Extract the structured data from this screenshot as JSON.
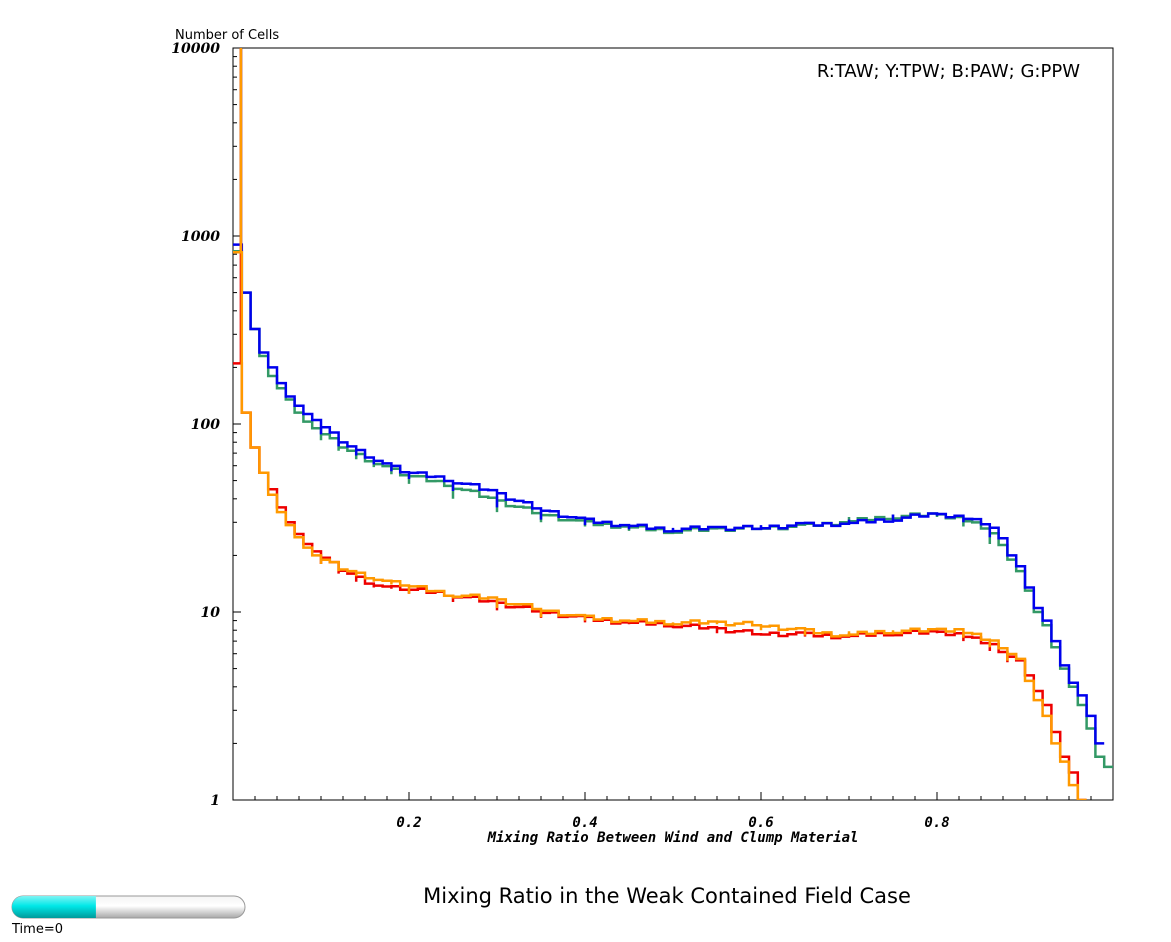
{
  "chart_data": {
    "type": "line",
    "title": "Mixing Ratio in the Weak Contained Field Case",
    "ylabel": "Number of Cells",
    "xlabel": "Mixing Ratio Between Wind and Clump Material",
    "legend_text": "R:TAW; Y:TPW; B:PAW; G:PPW",
    "legend_position": "top-right",
    "y_scale": "log",
    "ylim": [
      1,
      10000
    ],
    "xlim": [
      0,
      1
    ],
    "y_ticks": [
      "10000",
      "1000",
      "100",
      "10",
      "1"
    ],
    "y_tick_values": [
      10000,
      1000,
      100,
      10,
      1
    ],
    "x_ticks": [
      "0.2",
      "0.4",
      "0.6",
      "0.8"
    ],
    "x_tick_values": [
      0.2,
      0.4,
      0.6,
      0.8
    ],
    "grid": false,
    "bin_width": 0.01,
    "series": [
      {
        "name": "TAW",
        "color": "#ee0000",
        "bins": [
          [
            0.01,
            210
          ],
          [
            0.02,
            115
          ],
          [
            0.03,
            75
          ],
          [
            0.04,
            55
          ],
          [
            0.05,
            45
          ],
          [
            0.06,
            36
          ],
          [
            0.07,
            30
          ],
          [
            0.08,
            26
          ],
          [
            0.09,
            23
          ],
          [
            0.1,
            21
          ],
          [
            0.12,
            18
          ],
          [
            0.14,
            16
          ],
          [
            0.16,
            14.5
          ],
          [
            0.18,
            13.5
          ],
          [
            0.2,
            13.3
          ],
          [
            0.25,
            12.5
          ],
          [
            0.3,
            11.3
          ],
          [
            0.35,
            10.2
          ],
          [
            0.4,
            9.3
          ],
          [
            0.45,
            8.8
          ],
          [
            0.5,
            8.6
          ],
          [
            0.55,
            8.2
          ],
          [
            0.6,
            7.7
          ],
          [
            0.65,
            7.6
          ],
          [
            0.7,
            7.4
          ],
          [
            0.75,
            7.7
          ],
          [
            0.8,
            7.8
          ],
          [
            0.83,
            7.7
          ],
          [
            0.86,
            7.0
          ],
          [
            0.88,
            6.2
          ],
          [
            0.9,
            5.4
          ],
          [
            0.91,
            4.6
          ],
          [
            0.92,
            3.8
          ],
          [
            0.93,
            3.2
          ],
          [
            0.94,
            2.3
          ],
          [
            0.95,
            1.7
          ],
          [
            0.96,
            1.4
          ],
          [
            0.97,
            1.0
          ]
        ]
      },
      {
        "name": "TPW",
        "color": "#ff9900",
        "bins": [
          [
            0.01,
            820
          ],
          [
            0.02,
            115
          ],
          [
            0.03,
            75
          ],
          [
            0.04,
            55
          ],
          [
            0.05,
            42
          ],
          [
            0.06,
            34
          ],
          [
            0.07,
            29
          ],
          [
            0.08,
            25
          ],
          [
            0.09,
            22
          ],
          [
            0.1,
            20
          ],
          [
            0.12,
            18
          ],
          [
            0.14,
            16.5
          ],
          [
            0.16,
            15.5
          ],
          [
            0.18,
            14.5
          ],
          [
            0.2,
            14.0
          ],
          [
            0.25,
            12.5
          ],
          [
            0.3,
            11.8
          ],
          [
            0.35,
            10.5
          ],
          [
            0.4,
            9.4
          ],
          [
            0.45,
            9.0
          ],
          [
            0.5,
            8.8
          ],
          [
            0.55,
            8.8
          ],
          [
            0.6,
            8.6
          ],
          [
            0.65,
            8.0
          ],
          [
            0.7,
            7.5
          ],
          [
            0.75,
            7.9
          ],
          [
            0.8,
            8.0
          ],
          [
            0.83,
            8.1
          ],
          [
            0.86,
            7.3
          ],
          [
            0.88,
            6.5
          ],
          [
            0.9,
            5.5
          ],
          [
            0.91,
            4.3
          ],
          [
            0.92,
            3.4
          ],
          [
            0.93,
            2.8
          ],
          [
            0.94,
            2.0
          ],
          [
            0.95,
            1.6
          ],
          [
            0.96,
            1.2
          ],
          [
            0.97,
            1.0
          ]
        ]
      },
      {
        "name": "PAW",
        "color": "#0000ee",
        "bins": [
          [
            0.01,
            900
          ],
          [
            0.02,
            500
          ],
          [
            0.03,
            320
          ],
          [
            0.04,
            240
          ],
          [
            0.05,
            200
          ],
          [
            0.06,
            165
          ],
          [
            0.07,
            140
          ],
          [
            0.08,
            125
          ],
          [
            0.09,
            113
          ],
          [
            0.1,
            105
          ],
          [
            0.12,
            88
          ],
          [
            0.14,
            76
          ],
          [
            0.16,
            68
          ],
          [
            0.18,
            61
          ],
          [
            0.2,
            56
          ],
          [
            0.25,
            51
          ],
          [
            0.3,
            44
          ],
          [
            0.35,
            36
          ],
          [
            0.4,
            31
          ],
          [
            0.45,
            29
          ],
          [
            0.5,
            27.5
          ],
          [
            0.55,
            28.0
          ],
          [
            0.6,
            28.0
          ],
          [
            0.65,
            29.0
          ],
          [
            0.7,
            29.5
          ],
          [
            0.75,
            31.0
          ],
          [
            0.8,
            33.0
          ],
          [
            0.83,
            32.5
          ],
          [
            0.86,
            30.0
          ],
          [
            0.88,
            25.0
          ],
          [
            0.89,
            20.0
          ],
          [
            0.9,
            17.5
          ],
          [
            0.91,
            13.5
          ],
          [
            0.92,
            10.5
          ],
          [
            0.93,
            9.0
          ],
          [
            0.94,
            7.0
          ],
          [
            0.95,
            5.2
          ],
          [
            0.96,
            4.2
          ],
          [
            0.97,
            3.6
          ],
          [
            0.98,
            2.8
          ],
          [
            0.99,
            2.0
          ]
        ]
      },
      {
        "name": "PPW",
        "color": "#339966",
        "bins": [
          [
            0.01,
            830
          ],
          [
            0.02,
            500
          ],
          [
            0.03,
            320
          ],
          [
            0.04,
            230
          ],
          [
            0.05,
            180
          ],
          [
            0.06,
            155
          ],
          [
            0.07,
            135
          ],
          [
            0.08,
            115
          ],
          [
            0.09,
            103
          ],
          [
            0.1,
            95
          ],
          [
            0.12,
            82
          ],
          [
            0.14,
            72
          ],
          [
            0.16,
            65
          ],
          [
            0.18,
            59
          ],
          [
            0.2,
            54
          ],
          [
            0.25,
            48
          ],
          [
            0.3,
            40
          ],
          [
            0.35,
            34
          ],
          [
            0.4,
            30
          ],
          [
            0.45,
            28.5
          ],
          [
            0.5,
            27.0
          ],
          [
            0.55,
            27.5
          ],
          [
            0.6,
            28.0
          ],
          [
            0.65,
            28.5
          ],
          [
            0.7,
            30.0
          ],
          [
            0.75,
            32.0
          ],
          [
            0.8,
            33.0
          ],
          [
            0.83,
            32.0
          ],
          [
            0.86,
            28.5
          ],
          [
            0.88,
            23.0
          ],
          [
            0.89,
            19.0
          ],
          [
            0.9,
            16.5
          ],
          [
            0.91,
            13.0
          ],
          [
            0.92,
            10.0
          ],
          [
            0.93,
            8.5
          ],
          [
            0.94,
            6.5
          ],
          [
            0.95,
            5.0
          ],
          [
            0.96,
            4.0
          ],
          [
            0.97,
            3.2
          ],
          [
            0.98,
            2.4
          ],
          [
            0.99,
            1.7
          ],
          [
            1.0,
            1.5
          ]
        ]
      }
    ]
  },
  "time_slider": {
    "label": "Time=0",
    "progress": 0.36,
    "fill_color": "#00dddd",
    "track_color": "#d8d8d8"
  }
}
